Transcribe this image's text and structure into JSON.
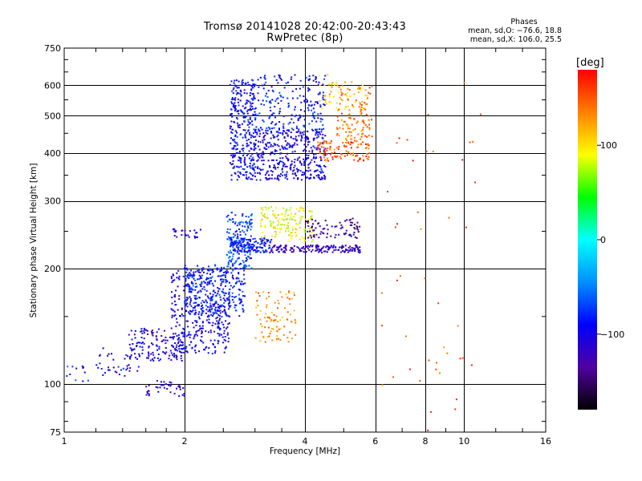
{
  "chart_data": {
    "type": "scatter",
    "title": "Tromsø 20141028 20:42:00-20:43:43",
    "subtitle": "RwPretec (8p)",
    "xlabel": "Frequency [MHz]",
    "ylabel": "Stationary phase Virtual Height [km]",
    "x_scale": "log",
    "y_scale": "log",
    "xlim": [
      1,
      16
    ],
    "ylim": [
      75,
      750
    ],
    "x_ticks": [
      1,
      2,
      4,
      6,
      8,
      10,
      16
    ],
    "x_tick_labels": [
      "1",
      "2",
      "4",
      "6",
      "8",
      "10",
      "16"
    ],
    "y_ticks": [
      75,
      100,
      200,
      300,
      400,
      500,
      600,
      750
    ],
    "y_tick_labels": [
      "75",
      "100",
      "200",
      "300",
      "400",
      "500",
      "600",
      "750"
    ],
    "grid": true,
    "stats": {
      "header": "Phases",
      "line1": "mean, sd,O: −76.6, 18.8",
      "line2": "mean, sd,X: 106.0, 25.5"
    },
    "colorbar": {
      "unit": "[deg]",
      "range": [
        -180,
        180
      ],
      "ticks": [
        100,
        0,
        -100
      ],
      "tick_labels": [
        "100",
        "0",
        "−100"
      ],
      "colors": [
        "#000000",
        "#5000a0",
        "#0000ff",
        "#0090ff",
        "#00ffff",
        "#00ff00",
        "#ffff00",
        "#ff8000",
        "#ff0000"
      ]
    },
    "clusters": [
      {
        "x": [
          1.0,
          1.15
        ],
        "y": [
          100,
          112
        ],
        "n": 12,
        "phase": -80
      },
      {
        "x": [
          1.2,
          1.55
        ],
        "y": [
          105,
          125
        ],
        "n": 40,
        "phase": -95
      },
      {
        "x": [
          1.45,
          2.0
        ],
        "y": [
          115,
          140
        ],
        "n": 140,
        "phase": -105
      },
      {
        "x": [
          1.6,
          2.0
        ],
        "y": [
          93,
          102
        ],
        "n": 40,
        "phase": -115
      },
      {
        "x": [
          1.85,
          2.6
        ],
        "y": [
          120,
          200
        ],
        "n": 380,
        "phase": -100
      },
      {
        "x": [
          2.0,
          2.85
        ],
        "y": [
          150,
          205
        ],
        "n": 260,
        "phase": -80
      },
      {
        "x": [
          2.55,
          2.95
        ],
        "y": [
          200,
          280
        ],
        "n": 160,
        "phase": -70
      },
      {
        "x": [
          2.6,
          3.3
        ],
        "y": [
          220,
          240
        ],
        "n": 150,
        "phase": -85
      },
      {
        "x": [
          1.85,
          2.2
        ],
        "y": [
          240,
          255
        ],
        "n": 25,
        "phase": -110
      },
      {
        "x": [
          3.3,
          5.5
        ],
        "y": [
          220,
          230
        ],
        "n": 160,
        "phase": -120
      },
      {
        "x": [
          3.1,
          4.2
        ],
        "y": [
          235,
          290
        ],
        "n": 150,
        "phase": 90
      },
      {
        "x": [
          4.0,
          5.5
        ],
        "y": [
          240,
          270
        ],
        "n": 80,
        "phase": -130
      },
      {
        "x": [
          2.6,
          3.0
        ],
        "y": [
          340,
          620
        ],
        "n": 320,
        "phase": -90
      },
      {
        "x": [
          3.0,
          4.5
        ],
        "y": [
          340,
          460
        ],
        "n": 400,
        "phase": -100
      },
      {
        "x": [
          3.0,
          4.5
        ],
        "y": [
          450,
          640
        ],
        "n": 220,
        "phase": -85
      },
      {
        "x": [
          4.3,
          5.8
        ],
        "y": [
          380,
          430
        ],
        "n": 110,
        "phase": 150
      },
      {
        "x": [
          4.8,
          5.9
        ],
        "y": [
          430,
          600
        ],
        "n": 120,
        "phase": 140
      },
      {
        "x": [
          4.3,
          5.8
        ],
        "y": [
          520,
          640
        ],
        "n": 50,
        "phase": 110
      },
      {
        "x": [
          3.0,
          3.8
        ],
        "y": [
          128,
          175
        ],
        "n": 90,
        "phase": 130
      },
      {
        "x": [
          6.0,
          11.0
        ],
        "y": [
          75,
          640
        ],
        "n": 45,
        "phase": 150
      }
    ]
  }
}
